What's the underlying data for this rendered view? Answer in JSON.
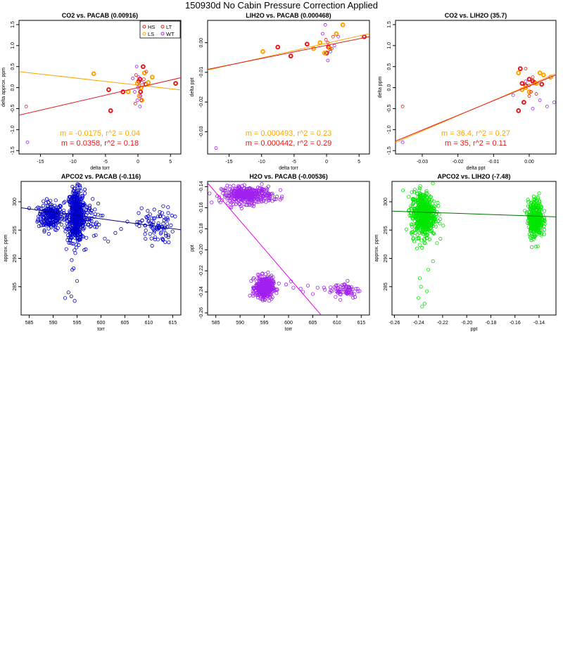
{
  "page": {
    "title": "150930d   No Cabin Pressure Correction Applied"
  },
  "colors": {
    "HS": "#e41a1c",
    "LS": "#ffa500",
    "LT": "#e41a1c",
    "WT": "#a020f0",
    "blue": "#0000cd",
    "purple": "#a020f0",
    "green": "#00e600",
    "darkgreen": "#007000",
    "navy": "#000080",
    "magenta": "#ee00ee"
  },
  "chart_data": [
    {
      "id": "p1",
      "type": "scatter",
      "title": "CO2 vs. PACAB (0.00916)",
      "xlabel": "delta torr",
      "ylabel": "delta approx. ppm",
      "xlim": [
        -18.3,
        6.6
      ],
      "ylim": [
        -1.58,
        1.6
      ],
      "xticks": [
        -15,
        -10,
        -5,
        0,
        5
      ],
      "xtick_labels": [
        "-15",
        "-10",
        "-5",
        "0",
        "5"
      ],
      "yticks": [
        -1.5,
        -1.0,
        -0.5,
        0.0,
        0.5,
        1.0,
        1.5
      ],
      "ytick_labels": [
        "-1.5",
        "-1.0",
        "-0.5",
        "0.0",
        "0.5",
        "1.0",
        "1.5"
      ],
      "legend": {
        "position": "top-right",
        "entries": [
          {
            "label": "HS",
            "color": "#e41a1c"
          },
          {
            "label": "LT",
            "color": "#e41a1c"
          },
          {
            "label": "LS",
            "color": "#ffa500"
          },
          {
            "label": "WT",
            "color": "#a020f0"
          }
        ]
      },
      "series": [
        {
          "name": "HS",
          "color": "#e41a1c",
          "bold": true,
          "points": [
            [
              -4.2,
              -0.55
            ],
            [
              -2.3,
              -0.1
            ],
            [
              -4.5,
              -0.05
            ],
            [
              0.1,
              0.15
            ],
            [
              0.3,
              0.2
            ],
            [
              0.4,
              -0.1
            ],
            [
              0.8,
              0.5
            ],
            [
              1.2,
              0.08
            ],
            [
              5.8,
              0.1
            ]
          ]
        },
        {
          "name": "LS",
          "color": "#ffa500",
          "bold": true,
          "points": [
            [
              -6.8,
              0.33
            ],
            [
              -1.5,
              -0.1
            ],
            [
              0.2,
              -0.2
            ],
            [
              0.5,
              0.0
            ],
            [
              1.0,
              0.35
            ],
            [
              1.6,
              0.12
            ],
            [
              2.2,
              0.25
            ],
            [
              -0.1,
              0.1
            ],
            [
              0.6,
              -0.3
            ]
          ]
        },
        {
          "name": "LT",
          "color": "#e41a1c",
          "bold": false,
          "points": [
            [
              -17.2,
              -0.45
            ],
            [
              -0.3,
              0.3
            ],
            [
              0.5,
              -0.3
            ],
            [
              -0.4,
              -0.38
            ],
            [
              0.9,
              0.2
            ],
            [
              1.3,
              0.38
            ],
            [
              0.2,
              0.05
            ]
          ]
        },
        {
          "name": "WT",
          "color": "#a020f0",
          "bold": false,
          "points": [
            [
              -17.0,
              -1.3
            ],
            [
              -0.8,
              0.22
            ],
            [
              -0.2,
              0.5
            ],
            [
              0.0,
              0.0
            ],
            [
              0.4,
              -0.2
            ],
            [
              -0.5,
              -0.1
            ],
            [
              0.3,
              -0.45
            ],
            [
              0.1,
              0.25
            ],
            [
              0.6,
              0.12
            ],
            [
              -0.1,
              -0.3
            ]
          ]
        }
      ],
      "fits": [
        {
          "color": "#ffa500",
          "slope": -0.0175,
          "intercept": 0.06
        },
        {
          "color": "#e41a1c",
          "slope": 0.0358,
          "intercept": 0.0
        }
      ],
      "annotations": [
        {
          "text": "m = -0.0175, r^2 = 0.04",
          "color": "#ffa500"
        },
        {
          "text": "m = 0.0358, r^2 = 0.18",
          "color": "#e41a1c"
        }
      ]
    },
    {
      "id": "p2",
      "type": "scatter",
      "title": "LIH2O vs. PACAB (0.000468)",
      "xlabel": "delta torr",
      "ylabel": "delta ppt",
      "xlim": [
        -18.3,
        6.6
      ],
      "ylim": [
        -0.0375,
        0.0075
      ],
      "xticks": [
        -15,
        -10,
        -5,
        0,
        5
      ],
      "xtick_labels": [
        "-15",
        "-10",
        "-5",
        "0",
        "5"
      ],
      "yticks": [
        -0.03,
        -0.02,
        -0.01,
        0.0
      ],
      "ytick_labels": [
        "-0.03",
        "-0.02",
        "-0.01",
        "0.00"
      ],
      "series": [
        {
          "name": "HS",
          "color": "#e41a1c",
          "bold": true,
          "points": [
            [
              -7.5,
              -0.0015
            ],
            [
              -5.5,
              -0.0045
            ],
            [
              -3.0,
              -0.0005
            ],
            [
              0.0,
              -0.0035
            ],
            [
              0.3,
              -0.0015
            ],
            [
              5.8,
              0.002
            ]
          ]
        },
        {
          "name": "LS",
          "color": "#ffa500",
          "bold": true,
          "points": [
            [
              -9.8,
              -0.003
            ],
            [
              -2.0,
              -0.002
            ],
            [
              -1.0,
              0.0
            ],
            [
              0.5,
              -0.002
            ],
            [
              1.5,
              0.003
            ],
            [
              2.5,
              0.006
            ],
            [
              -0.3,
              -0.0035
            ]
          ]
        },
        {
          "name": "LT",
          "color": "#e41a1c",
          "bold": false,
          "points": [
            [
              0.2,
              0.0
            ],
            [
              0.8,
              -0.002
            ],
            [
              -0.1,
              0.001
            ],
            [
              1.0,
              0.002
            ]
          ]
        },
        {
          "name": "WT",
          "color": "#a020f0",
          "bold": false,
          "points": [
            [
              -17.0,
              -0.0355
            ],
            [
              -0.2,
              0.006
            ],
            [
              0.6,
              -0.003
            ],
            [
              1.2,
              -0.001
            ],
            [
              -0.6,
              0.003
            ],
            [
              0.2,
              -0.006
            ],
            [
              1.8,
              0.002
            ]
          ]
        }
      ],
      "fits": [
        {
          "color": "#ffa500",
          "slope": 0.000493,
          "intercept": -0.0002
        },
        {
          "color": "#e41a1c",
          "slope": 0.000442,
          "intercept": -0.0009
        }
      ],
      "annotations": [
        {
          "text": "m = 0.000493, r^2 = 0.23",
          "color": "#ffa500"
        },
        {
          "text": "m = 0.000442, r^2 = 0.29",
          "color": "#e41a1c"
        }
      ]
    },
    {
      "id": "p3",
      "type": "scatter",
      "title": "CO2 vs. LIH2O (35.7)",
      "xlabel": "delta ppt",
      "ylabel": "delta ppm",
      "xlim": [
        -0.0375,
        0.0075
      ],
      "ylim": [
        -1.58,
        1.6
      ],
      "xticks": [
        -0.03,
        -0.02,
        -0.01,
        0.0
      ],
      "xtick_labels": [
        "-0.03",
        "-0.02",
        "-0.01",
        "0.00"
      ],
      "yticks": [
        -1.5,
        -1.0,
        -0.5,
        0.0,
        0.5,
        1.0,
        1.5
      ],
      "ytick_labels": [
        "-1.5",
        "-1.0",
        "-0.5",
        "0.0",
        "0.5",
        "1.0",
        "1.5"
      ],
      "series": [
        {
          "name": "HS",
          "color": "#e41a1c",
          "bold": true,
          "points": [
            [
              -0.003,
              -0.55
            ],
            [
              -0.0025,
              0.45
            ],
            [
              -0.002,
              0.1
            ],
            [
              -0.001,
              0.05
            ],
            [
              0.0,
              0.2
            ],
            [
              0.001,
              0.15
            ],
            [
              0.0015,
              0.12
            ],
            [
              0.0035,
              0.08
            ],
            [
              -0.0015,
              -0.35
            ]
          ]
        },
        {
          "name": "LS",
          "color": "#ffa500",
          "bold": true,
          "points": [
            [
              -0.003,
              0.35
            ],
            [
              -0.001,
              0.0
            ],
            [
              0.0,
              -0.1
            ],
            [
              0.002,
              0.1
            ],
            [
              0.003,
              0.35
            ],
            [
              0.004,
              0.3
            ],
            [
              0.006,
              0.25
            ],
            [
              -0.002,
              -0.05
            ]
          ]
        },
        {
          "name": "LT",
          "color": "#e41a1c",
          "bold": false,
          "points": [
            [
              -0.0355,
              -0.45
            ],
            [
              -0.001,
              0.45
            ],
            [
              0.0,
              -0.2
            ],
            [
              0.001,
              0.25
            ],
            [
              0.0005,
              -0.1
            ],
            [
              0.002,
              -0.15
            ]
          ]
        },
        {
          "name": "WT",
          "color": "#a020f0",
          "bold": false,
          "points": [
            [
              -0.0355,
              -1.3
            ],
            [
              -0.0045,
              -0.18
            ],
            [
              0.001,
              -0.5
            ],
            [
              0.003,
              -0.3
            ],
            [
              0.005,
              -0.45
            ],
            [
              0.007,
              -0.35
            ],
            [
              0.0,
              0.05
            ],
            [
              -0.001,
              0.15
            ]
          ]
        }
      ],
      "fits": [
        {
          "color": "#ffa500",
          "slope": 36.4,
          "intercept": 0.06
        },
        {
          "color": "#e41a1c",
          "slope": 35.0,
          "intercept": 0.04
        }
      ],
      "annotations": [
        {
          "text": "m = 36.4, r^2 = 0.27",
          "color": "#ffa500"
        },
        {
          "text": "m = 35, r^2 = 0.11",
          "color": "#e41a1c"
        }
      ]
    },
    {
      "id": "p4",
      "type": "scatter",
      "title": "APCO2 vs. PACAB (-0.116)",
      "xlabel": "torr",
      "ylabel": "approx. ppm",
      "xlim": [
        583.3,
        616.7
      ],
      "ylim": [
        280.0,
        303.6
      ],
      "xticks": [
        585,
        590,
        595,
        600,
        605,
        610,
        615
      ],
      "xtick_labels": [
        "585",
        "590",
        "595",
        "600",
        "605",
        "610",
        "615"
      ],
      "yticks": [
        285,
        290,
        295,
        300
      ],
      "ytick_labels": [
        "285",
        "290",
        "295",
        "300"
      ],
      "color": "#0000cd",
      "clusters": [
        {
          "cx": 589.5,
          "cy": 297.5,
          "sx": 1.3,
          "sy": 1.2,
          "n": 220
        },
        {
          "cx": 594.8,
          "cy": 297.5,
          "sx": 0.9,
          "sy": 2.3,
          "n": 520
        },
        {
          "cx": 597.5,
          "cy": 297.0,
          "sx": 1.2,
          "sy": 1.5,
          "n": 40
        },
        {
          "cx": 611.5,
          "cy": 295.8,
          "sx": 1.8,
          "sy": 1.6,
          "n": 90
        }
      ],
      "outliers": [
        [
          593.2,
          284.0
        ],
        [
          593.8,
          283.3
        ],
        [
          594.5,
          282.5
        ],
        [
          592.5,
          283.0
        ],
        [
          595.0,
          286.0
        ],
        [
          594.0,
          288.0
        ],
        [
          596.5,
          291.5
        ],
        [
          598.5,
          294.0
        ],
        [
          600.8,
          293.5
        ],
        [
          603.0,
          294.5
        ],
        [
          605.5,
          296.5
        ],
        [
          604.2,
          295.2
        ],
        [
          601.5,
          293.0
        ]
      ],
      "fits": [
        {
          "color": "#000080",
          "slope": -0.116,
          "intercept": 366.6
        }
      ]
    },
    {
      "id": "p5",
      "type": "scatter",
      "title": "H2O vs. PACAB (-0.00536)",
      "xlabel": "torr",
      "ylabel": "ppt",
      "xlim": [
        583.3,
        616.7
      ],
      "ylim": [
        -0.262,
        -0.135
      ],
      "xticks": [
        585,
        590,
        595,
        600,
        605,
        610,
        615
      ],
      "xtick_labels": [
        "585",
        "590",
        "595",
        "600",
        "605",
        "610",
        "615"
      ],
      "yticks": [
        -0.26,
        -0.24,
        -0.22,
        -0.2,
        -0.18,
        -0.16,
        -0.14
      ],
      "ytick_labels": [
        "-0.26",
        "-0.24",
        "-0.22",
        "-0.20",
        "-0.18",
        "-0.16",
        "-0.14"
      ],
      "color": "#a020f0",
      "clusters": [
        {
          "cx": 591.5,
          "cy": -0.148,
          "sx": 2.6,
          "sy": 0.004,
          "n": 380
        },
        {
          "cx": 595.0,
          "cy": -0.236,
          "sx": 0.9,
          "sy": 0.005,
          "n": 420
        },
        {
          "cx": 611.5,
          "cy": -0.238,
          "sx": 1.6,
          "sy": 0.004,
          "n": 70
        }
      ],
      "outliers": [
        [
          598.0,
          -0.232
        ],
        [
          599.5,
          -0.233
        ],
        [
          601.0,
          -0.236
        ],
        [
          602.5,
          -0.237
        ],
        [
          604.0,
          -0.234
        ],
        [
          606.0,
          -0.236
        ],
        [
          607.5,
          -0.238
        ],
        [
          603.0,
          -0.24
        ],
        [
          605.0,
          -0.242
        ],
        [
          600.5,
          -0.23
        ]
      ],
      "fits": [
        {
          "color": "#ee00ee",
          "slope": -0.00536,
          "intercept": 2.99
        }
      ]
    },
    {
      "id": "p6",
      "type": "scatter",
      "title": "APCO2 vs. LIH2O (-7.48)",
      "xlabel": "ppt",
      "ylabel": "approx. ppm",
      "xlim": [
        -0.262,
        -0.126
      ],
      "ylim": [
        280.0,
        303.6
      ],
      "xticks": [
        -0.26,
        -0.24,
        -0.22,
        -0.2,
        -0.18,
        -0.16,
        -0.14
      ],
      "xtick_labels": [
        "-0.26",
        "-0.24",
        "-0.22",
        "-0.20",
        "-0.18",
        "-0.16",
        "-0.14"
      ],
      "yticks": [
        285,
        290,
        295,
        300
      ],
      "ytick_labels": [
        "285",
        "290",
        "295",
        "300"
      ],
      "color": "#00e600",
      "clusters": [
        {
          "cx": -0.236,
          "cy": 297.8,
          "sx": 0.005,
          "sy": 2.0,
          "n": 560
        },
        {
          "cx": -0.143,
          "cy": 297.0,
          "sx": 0.003,
          "sy": 1.6,
          "n": 380
        }
      ],
      "outliers": [
        [
          -0.238,
          285.0
        ],
        [
          -0.24,
          283.0
        ],
        [
          -0.235,
          282.0
        ],
        [
          -0.237,
          281.5
        ],
        [
          -0.233,
          284.2
        ],
        [
          -0.239,
          286.5
        ],
        [
          -0.232,
          288.0
        ],
        [
          -0.228,
          289.5
        ],
        [
          -0.146,
          292.0
        ],
        [
          -0.14,
          301.5
        ]
      ],
      "fits": [
        {
          "color": "#007000",
          "slope": -7.48,
          "intercept": 296.4
        }
      ]
    }
  ]
}
